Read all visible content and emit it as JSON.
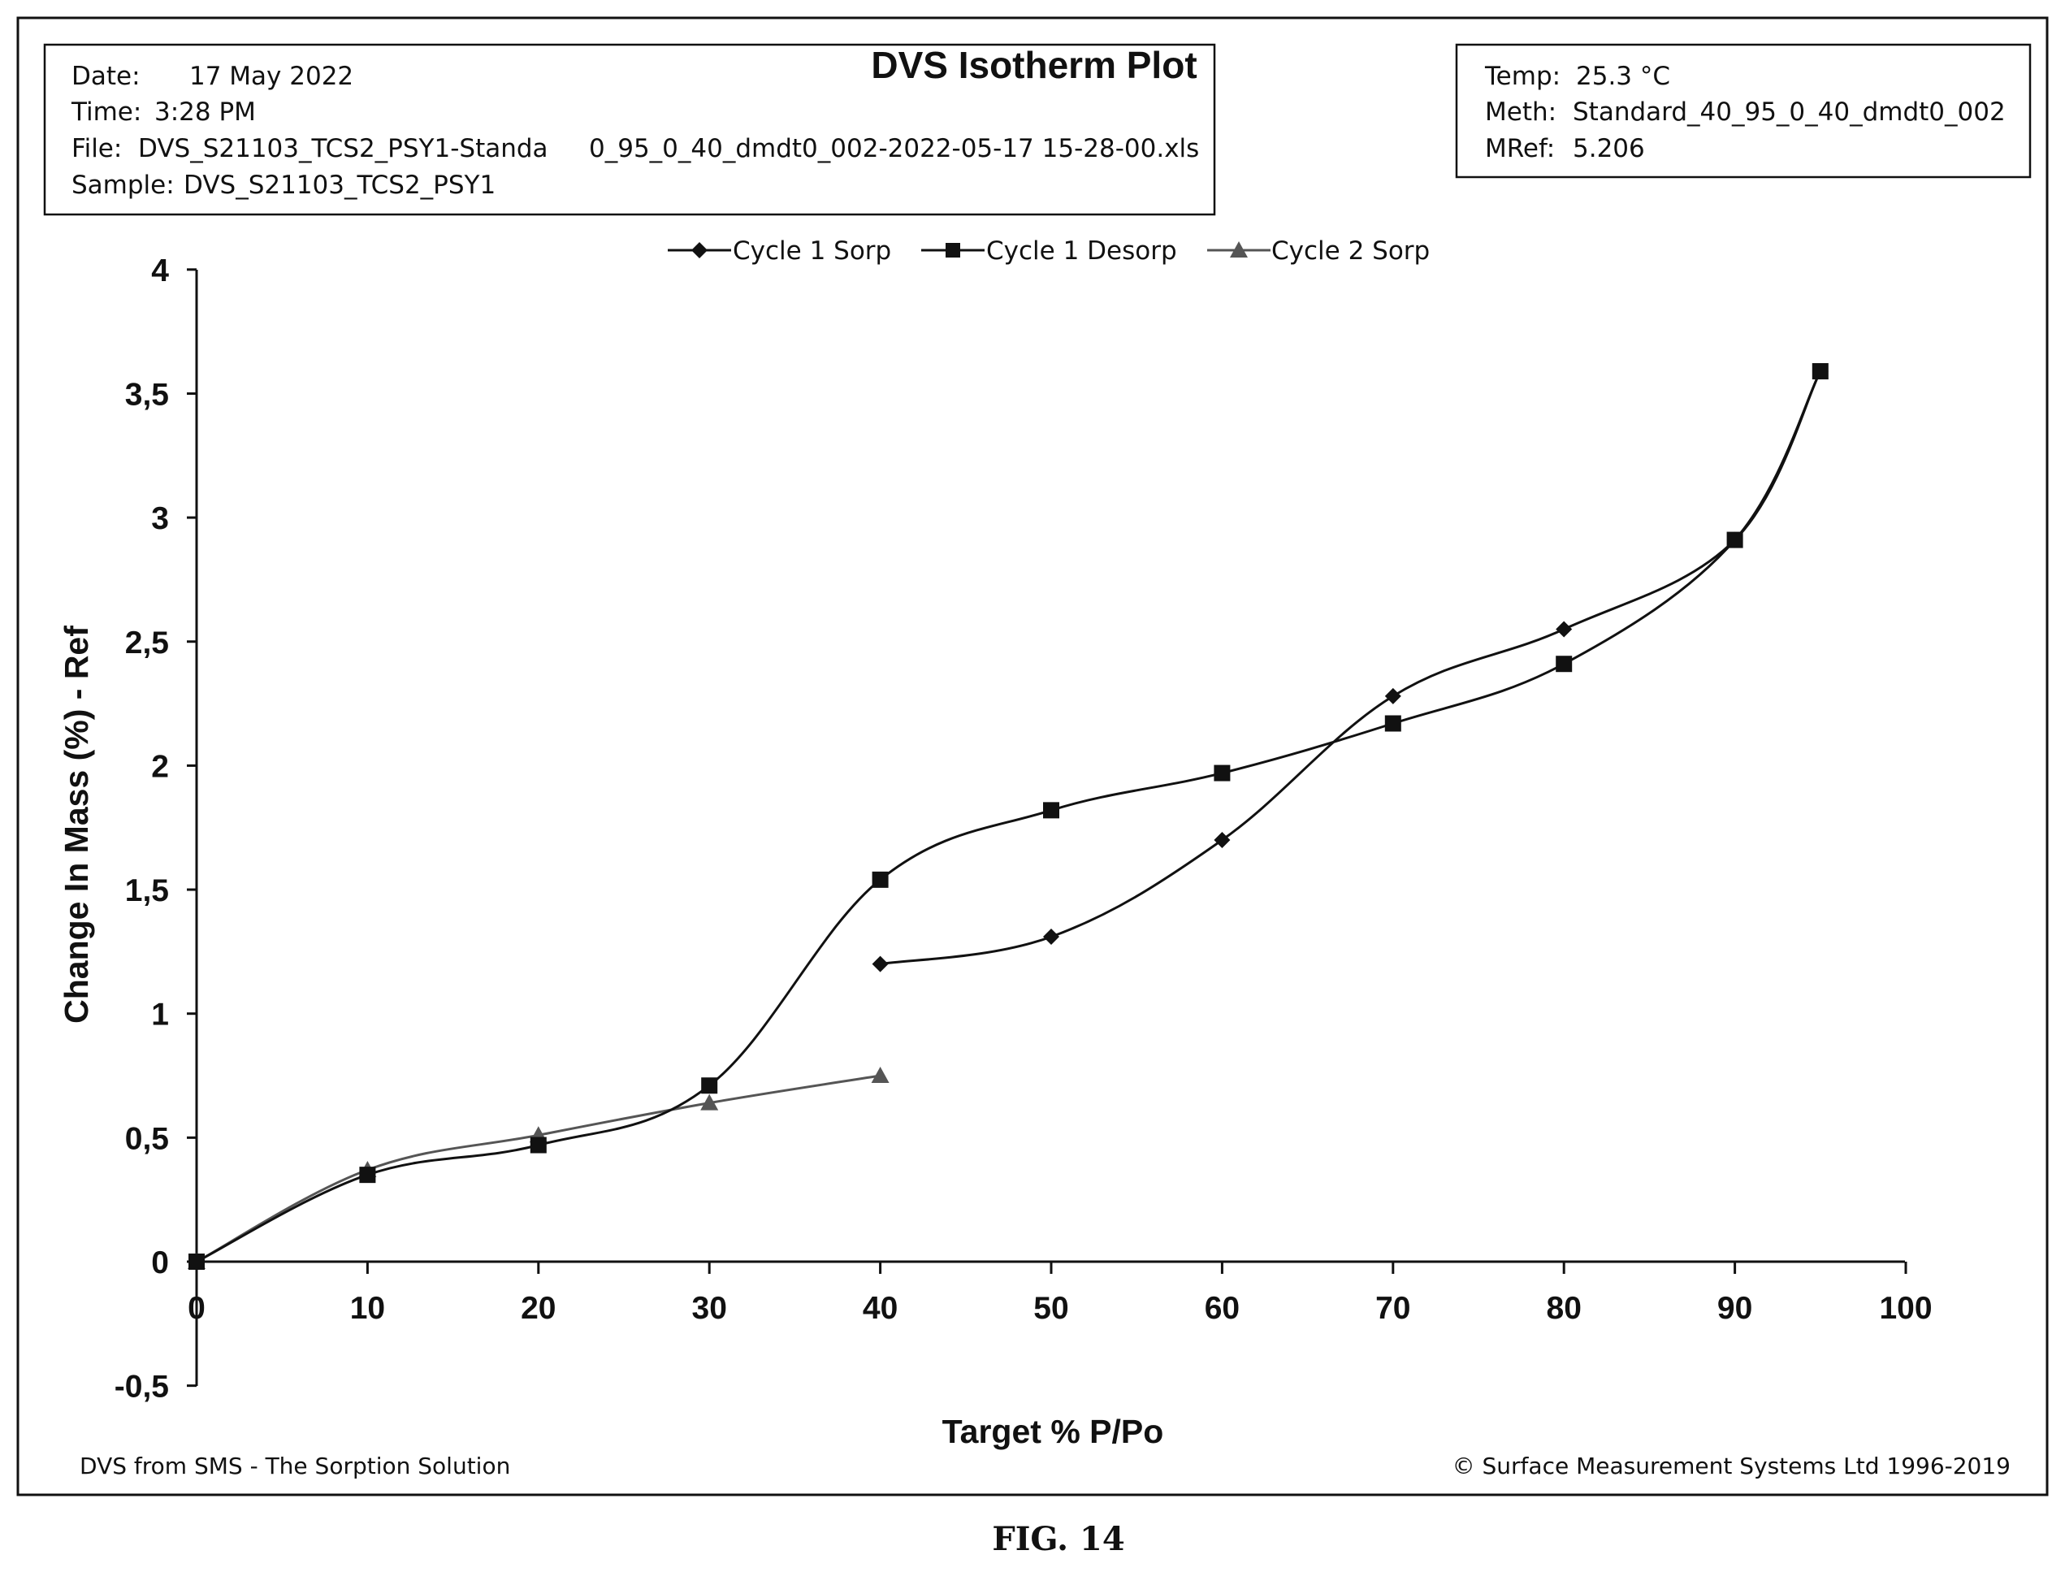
{
  "info_left": {
    "date_label": "Date:",
    "date_value": "17 May 2022",
    "time_label": "Time:",
    "time_value": "3:28 PM",
    "file_label": "File:",
    "file_value_part1": "DVS_S21103_TCS2_PSY1-Standa",
    "file_value_part2": "0_95_0_40_dmdt0_002-2022-05-17 15-28-00.xls",
    "sample_label": "Sample:",
    "sample_value": "DVS_S21103_TCS2_PSY1"
  },
  "info_right": {
    "temp_label": "Temp:",
    "temp_value": "25.3 °C",
    "meth_label": "Meth:",
    "meth_value": "Standard_40_95_0_40_dmdt0_002",
    "mref_label": "MRef:",
    "mref_value": "5.206"
  },
  "footer": {
    "left": "DVS from SMS - The Sorption Solution",
    "right": "© Surface Measurement Systems Ltd 1996-2019"
  },
  "figure_label": "FIG. 14",
  "colors": {
    "ink": "#111111",
    "cycle2": "#555555"
  },
  "chart_data": {
    "type": "line",
    "title": "DVS Isotherm Plot",
    "xlabel": "Target %  P/Po",
    "ylabel": "Change In Mass (%)  - Ref",
    "xlim": [
      0,
      100
    ],
    "ylim": [
      -0.5,
      4
    ],
    "x_ticks": [
      {
        "value": 0,
        "label": "0"
      },
      {
        "value": 10,
        "label": "10"
      },
      {
        "value": 20,
        "label": "20"
      },
      {
        "value": 30,
        "label": "30"
      },
      {
        "value": 40,
        "label": "40"
      },
      {
        "value": 50,
        "label": "50"
      },
      {
        "value": 60,
        "label": "60"
      },
      {
        "value": 70,
        "label": "70"
      },
      {
        "value": 80,
        "label": "80"
      },
      {
        "value": 90,
        "label": "90"
      },
      {
        "value": 100,
        "label": "100"
      }
    ],
    "y_ticks": [
      {
        "value": -0.5,
        "label": "-0,5"
      },
      {
        "value": 0,
        "label": "0"
      },
      {
        "value": 0.5,
        "label": "0,5"
      },
      {
        "value": 1,
        "label": "1"
      },
      {
        "value": 1.5,
        "label": "1,5"
      },
      {
        "value": 2,
        "label": "2"
      },
      {
        "value": 2.5,
        "label": "2,5"
      },
      {
        "value": 3,
        "label": "3"
      },
      {
        "value": 3.5,
        "label": "3,5"
      },
      {
        "value": 4,
        "label": "4"
      }
    ],
    "grid": false,
    "legend_position": "top",
    "series": [
      {
        "name": "Cycle 1 Sorp",
        "marker": "diamond",
        "x": [
          40,
          50,
          60,
          70,
          80,
          90,
          95
        ],
        "y": [
          1.2,
          1.31,
          1.7,
          2.28,
          2.55,
          2.91,
          3.59
        ]
      },
      {
        "name": "Cycle 1 Desorp",
        "marker": "square",
        "x": [
          95,
          90,
          80,
          70,
          60,
          50,
          40,
          30,
          20,
          10,
          0
        ],
        "y": [
          3.59,
          2.91,
          2.41,
          2.17,
          1.97,
          1.82,
          1.54,
          0.71,
          0.47,
          0.35,
          0.0
        ]
      },
      {
        "name": "Cycle 2 Sorp",
        "marker": "triangle",
        "x": [
          0,
          10,
          20,
          30,
          40
        ],
        "y": [
          0.0,
          0.37,
          0.51,
          0.64,
          0.75
        ]
      }
    ]
  }
}
